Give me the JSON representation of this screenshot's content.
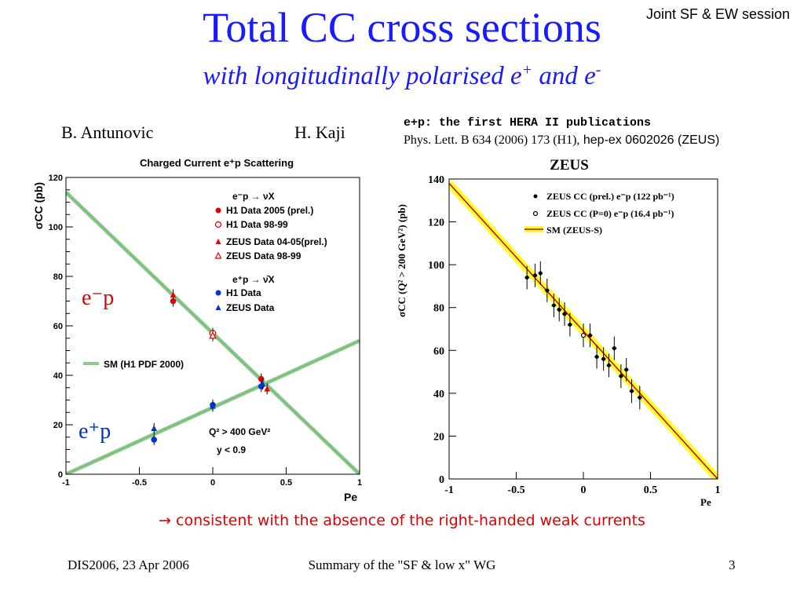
{
  "header": {
    "session": "Joint SF & EW session",
    "title": "Total CC cross sections",
    "subtitle_pre": "with longitudinally polarised e",
    "subtitle_sup1": "+",
    "subtitle_mid": " and e",
    "subtitle_sup2": "-"
  },
  "authors": {
    "left": "B. Antunovic",
    "right": "H. Kaji"
  },
  "publication": {
    "heading": "e+p: the first HERA II publications",
    "ref_serif": "Phys. Lett. B 634 (2006) 173 (H1),",
    "ref_sans": " hep-ex 0602026 (ZEUS)"
  },
  "conclusion": "→ consistent with the absence of the right-handed weak currents",
  "footer": {
    "left": "DIS2006, 23 Apr 2006",
    "center": "Summary of  the \"SF & low x\" WG",
    "right": "3"
  },
  "colors": {
    "title": "#1a1aff",
    "conclusion": "#e00000",
    "h1_red": "#e60000",
    "h1_blue": "#0033cc",
    "band_green": "#8fc98f",
    "zeus_band": "#ffff33",
    "zeus_line": "#d40000"
  },
  "chart_data": [
    {
      "type": "scatter",
      "title": "Charged Current e⁺p Scattering",
      "ylabel": "σCC (pb)",
      "xlabel": "Pe",
      "xlim": [
        -1,
        1
      ],
      "ylim": [
        0,
        120
      ],
      "xticks": [
        "-1",
        "-0.5",
        "0",
        "0.5",
        "1"
      ],
      "yticks": [
        "0",
        "20",
        "40",
        "60",
        "80",
        "100",
        "120"
      ],
      "legend_head_em": "e⁻p → νX",
      "legend_head_ep": "e⁺p → ν̄X",
      "sm_label": "SM (H1 PDF 2000)",
      "label_em": "e⁻p",
      "label_ep": "e⁺p",
      "cut1": "Q² > 400 GeV²",
      "cut2": "y < 0.9",
      "series": [
        {
          "name": "H1 Data 2005 (prel.)",
          "marker": "filled-circle",
          "color": "#e60000",
          "x": [
            -0.27,
            0.33
          ],
          "y": [
            70.0,
            38.5
          ]
        },
        {
          "name": "H1 Data 98-99",
          "marker": "open-circle",
          "color": "#e60000",
          "x": [
            0.0
          ],
          "y": [
            57.0
          ]
        },
        {
          "name": "ZEUS Data 04-05(prel.)",
          "marker": "filled-triangle",
          "color": "#e60000",
          "x": [
            -0.27,
            0.37
          ],
          "y": [
            72.5,
            34.5
          ]
        },
        {
          "name": "ZEUS Data 98-99",
          "marker": "open-triangle",
          "color": "#e60000",
          "x": [
            0.0
          ],
          "y": [
            56.0
          ]
        },
        {
          "name": "H1 Data",
          "marker": "filled-circle",
          "color": "#0033cc",
          "x": [
            -0.4,
            0.0,
            0.33
          ],
          "y": [
            14.0,
            28.0,
            35.5
          ]
        },
        {
          "name": "ZEUS Data",
          "marker": "filled-triangle",
          "color": "#0033cc",
          "x": [
            -0.4,
            0.0,
            0.34
          ],
          "y": [
            18.5,
            27.5,
            36.5
          ]
        }
      ],
      "sm_lines": [
        {
          "name": "e⁻p",
          "x": [
            -1,
            1
          ],
          "y": [
            114,
            0
          ]
        },
        {
          "name": "e⁺p",
          "x": [
            -1,
            1
          ],
          "y": [
            0,
            54
          ]
        }
      ]
    },
    {
      "type": "scatter",
      "title": "ZEUS",
      "ylabel": "σCC (Q² > 200 GeV²) (pb)",
      "xlabel": "Pe",
      "xlim": [
        -1,
        1
      ],
      "ylim": [
        0,
        140
      ],
      "xticks": [
        "-1",
        "-0.5",
        "0",
        "0.5",
        "1"
      ],
      "yticks": [
        "0",
        "20",
        "40",
        "60",
        "80",
        "100",
        "120",
        "140"
      ],
      "series": [
        {
          "name": "ZEUS CC (prel.) e⁻p (122 pb⁻¹)",
          "marker": "filled-circle",
          "x": [
            -0.42,
            -0.36,
            -0.32,
            -0.27,
            -0.22,
            -0.18,
            -0.14,
            -0.1,
            0.05,
            0.1,
            0.15,
            0.19,
            0.23,
            0.28,
            0.32,
            0.36,
            0.42
          ],
          "y": [
            94,
            95,
            96,
            88,
            81,
            79,
            77,
            72,
            67,
            57,
            56,
            53,
            61,
            48,
            51,
            41,
            38
          ]
        },
        {
          "name": "ZEUS CC (P=0) e⁻p (16.4 pb⁻¹)",
          "marker": "open-circle",
          "x": [
            0.0
          ],
          "y": [
            67
          ]
        }
      ],
      "sm_line": {
        "name": "SM (ZEUS-S)",
        "x": [
          -1,
          1
        ],
        "y": [
          138,
          0
        ]
      }
    }
  ]
}
